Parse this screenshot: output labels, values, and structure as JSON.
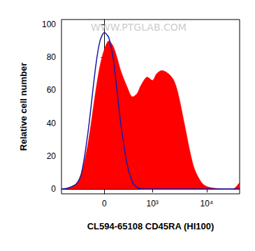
{
  "chart_data": {
    "type": "histogram",
    "x_label": "CL594-65108 CD45RA (HI100)",
    "y_label": "Relative cell number",
    "annotations": [
      "WWW.PTGLAB.COM"
    ],
    "x": [
      -800,
      -600,
      -400,
      -300,
      -200,
      -100,
      -50,
      0,
      50,
      100,
      150,
      200,
      300,
      400,
      500,
      600,
      800,
      1000,
      1200,
      1500,
      2000,
      2500,
      3000,
      4000,
      5000,
      6000,
      8000,
      10000,
      15000,
      20000,
      30000,
      40000
    ],
    "series": [
      {
        "type": "area",
        "color": "#ff0000",
        "values": [
          0,
          0.5,
          3,
          10,
          28,
          60,
          75,
          85,
          90,
          87,
          80,
          72,
          62,
          56,
          58,
          63,
          68,
          66,
          70,
          72,
          70,
          66,
          58,
          38,
          22,
          12,
          4,
          1.5,
          0.3,
          0,
          0,
          4
        ]
      },
      {
        "type": "line",
        "color": "#1a1aa6",
        "values": [
          0,
          0.5,
          3,
          10,
          35,
          75,
          90,
          95,
          92,
          80,
          60,
          40,
          15,
          4,
          1,
          0,
          0,
          0,
          0,
          0,
          0,
          0,
          0,
          0,
          0,
          0,
          0,
          0,
          0,
          0,
          0,
          0
        ]
      }
    ],
    "xlim": [
      -800,
      40000
    ],
    "xticks": [
      0,
      {
        "value": 1000,
        "label": "10³"
      },
      {
        "value": 10000,
        "label": "10⁴"
      }
    ],
    "ylim": [
      -3,
      103
    ],
    "yticks": [
      0,
      20,
      40,
      60,
      80,
      100
    ],
    "grid": false
  }
}
